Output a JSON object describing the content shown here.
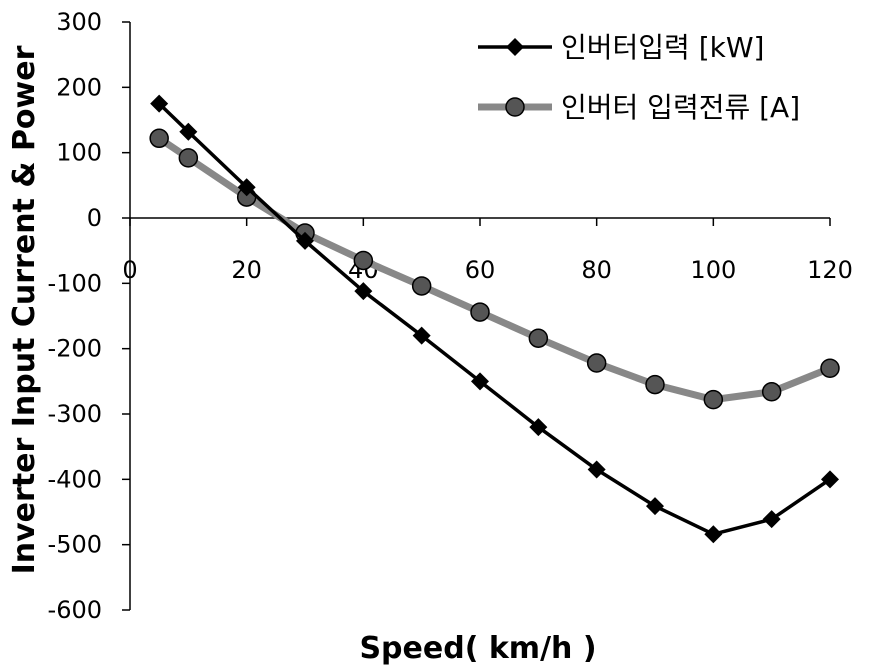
{
  "chart_data": {
    "type": "line",
    "title": "",
    "xlabel": "Speed( km/h )",
    "ylabel": "Inverter Input Current & Power",
    "xlim": [
      0,
      120
    ],
    "ylim": [
      -600,
      300
    ],
    "xticks": [
      0,
      20,
      40,
      60,
      80,
      100,
      120
    ],
    "yticks": [
      300,
      200,
      100,
      0,
      -100,
      -200,
      -300,
      -400,
      -500,
      -600
    ],
    "x_tick_labels": [
      "0",
      "20",
      "40",
      "60",
      "80",
      "100",
      "120"
    ],
    "y_tick_labels": [
      "300",
      "200",
      "100",
      "0",
      "-100",
      "-200",
      "-300",
      "-400",
      "-500",
      "-600"
    ],
    "grid": false,
    "legend_position": "top-right",
    "series": [
      {
        "name": "인버터입력 [kW]",
        "color": "#000000",
        "marker": "diamond",
        "x": [
          5,
          10,
          20,
          30,
          40,
          50,
          60,
          70,
          80,
          90,
          100,
          110,
          120
        ],
        "y": [
          175,
          132,
          47,
          -35,
          -112,
          -180,
          -250,
          -320,
          -385,
          -441,
          -484,
          -461,
          -400
        ]
      },
      {
        "name": "인버터 입력전류 [A]",
        "color": "#888888",
        "marker": "circle",
        "x": [
          5,
          10,
          20,
          30,
          40,
          50,
          60,
          70,
          80,
          90,
          100,
          110,
          120
        ],
        "y": [
          122,
          92,
          32,
          -23,
          -65,
          -104,
          -144,
          -184,
          -222,
          -255,
          -278,
          -266,
          -230
        ]
      }
    ]
  }
}
